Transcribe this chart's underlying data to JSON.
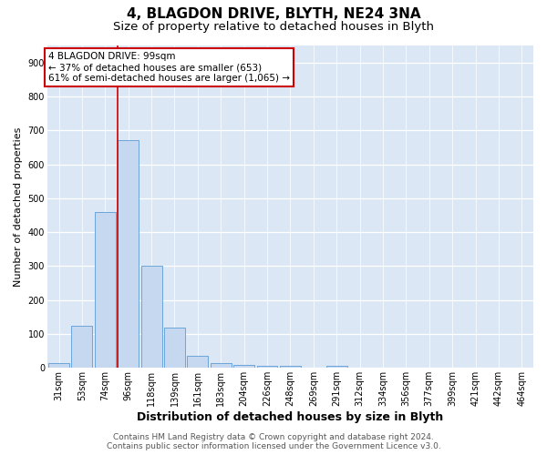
{
  "title": "4, BLAGDON DRIVE, BLYTH, NE24 3NA",
  "subtitle": "Size of property relative to detached houses in Blyth",
  "xlabel": "Distribution of detached houses by size in Blyth",
  "ylabel": "Number of detached properties",
  "categories": [
    "31sqm",
    "53sqm",
    "74sqm",
    "96sqm",
    "118sqm",
    "139sqm",
    "161sqm",
    "183sqm",
    "204sqm",
    "226sqm",
    "248sqm",
    "269sqm",
    "291sqm",
    "312sqm",
    "334sqm",
    "356sqm",
    "377sqm",
    "399sqm",
    "421sqm",
    "442sqm",
    "464sqm"
  ],
  "values": [
    15,
    125,
    460,
    670,
    300,
    118,
    35,
    15,
    10,
    7,
    5,
    0,
    5,
    0,
    0,
    0,
    0,
    0,
    0,
    0,
    0
  ],
  "bar_color": "#c5d8f0",
  "bar_edge_color": "#5b9bd5",
  "property_line_color": "#cc0000",
  "property_line_x": 2.55,
  "annotation_text": "4 BLAGDON DRIVE: 99sqm\n← 37% of detached houses are smaller (653)\n61% of semi-detached houses are larger (1,065) →",
  "annotation_box_facecolor": "#ffffff",
  "annotation_box_edgecolor": "#cc0000",
  "ylim": [
    0,
    950
  ],
  "yticks": [
    0,
    100,
    200,
    300,
    400,
    500,
    600,
    700,
    800,
    900
  ],
  "background_color": "#ffffff",
  "plot_background_color": "#dce7f5",
  "grid_color": "#ffffff",
  "title_fontsize": 11,
  "subtitle_fontsize": 9.5,
  "ylabel_fontsize": 8,
  "xlabel_fontsize": 9,
  "tick_fontsize": 7,
  "ann_fontsize": 7.5,
  "footer_fontsize": 6.5,
  "footer_text": "Contains HM Land Registry data © Crown copyright and database right 2024.\nContains public sector information licensed under the Government Licence v3.0."
}
